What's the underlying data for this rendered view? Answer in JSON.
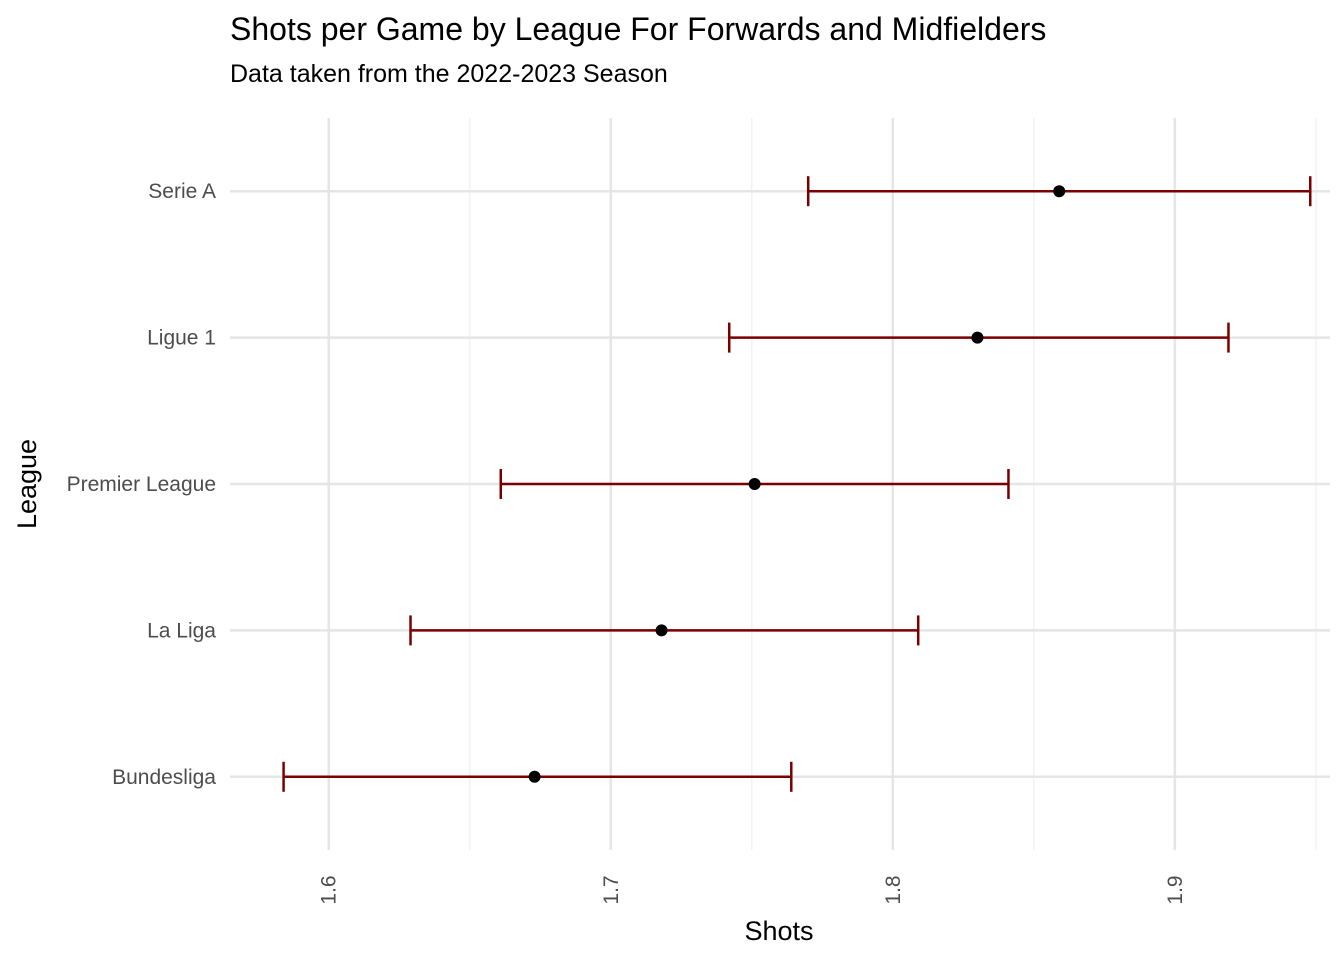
{
  "chart_data": {
    "type": "errorbar",
    "title": "Shots per Game by League For Forwards and Midfielders",
    "subtitle": "Data taken from the 2022-2023 Season",
    "xlabel": "Shots",
    "ylabel": "League",
    "xlim": [
      1.565,
      1.955
    ],
    "x_ticks": [
      1.6,
      1.7,
      1.8,
      1.9
    ],
    "x_tick_labels": [
      "1.6",
      "1.7",
      "1.8",
      "1.9"
    ],
    "categories": [
      "Serie A",
      "Ligue 1",
      "Premier League",
      "La Liga",
      "Bundesliga"
    ],
    "points": [
      {
        "league": "Serie A",
        "mean": 1.859,
        "lower": 1.77,
        "upper": 1.948
      },
      {
        "league": "Ligue 1",
        "mean": 1.83,
        "lower": 1.742,
        "upper": 1.919
      },
      {
        "league": "Premier League",
        "mean": 1.751,
        "lower": 1.661,
        "upper": 1.841
      },
      {
        "league": "La Liga",
        "mean": 1.718,
        "lower": 1.629,
        "upper": 1.809
      },
      {
        "league": "Bundesliga",
        "mean": 1.673,
        "lower": 1.584,
        "upper": 1.764
      }
    ],
    "grid": true,
    "colors": {
      "errorbar": "#7a0000",
      "point": "#000000",
      "grid_major": "#e5e5e5",
      "grid_minor": "#f2f2f2"
    }
  }
}
